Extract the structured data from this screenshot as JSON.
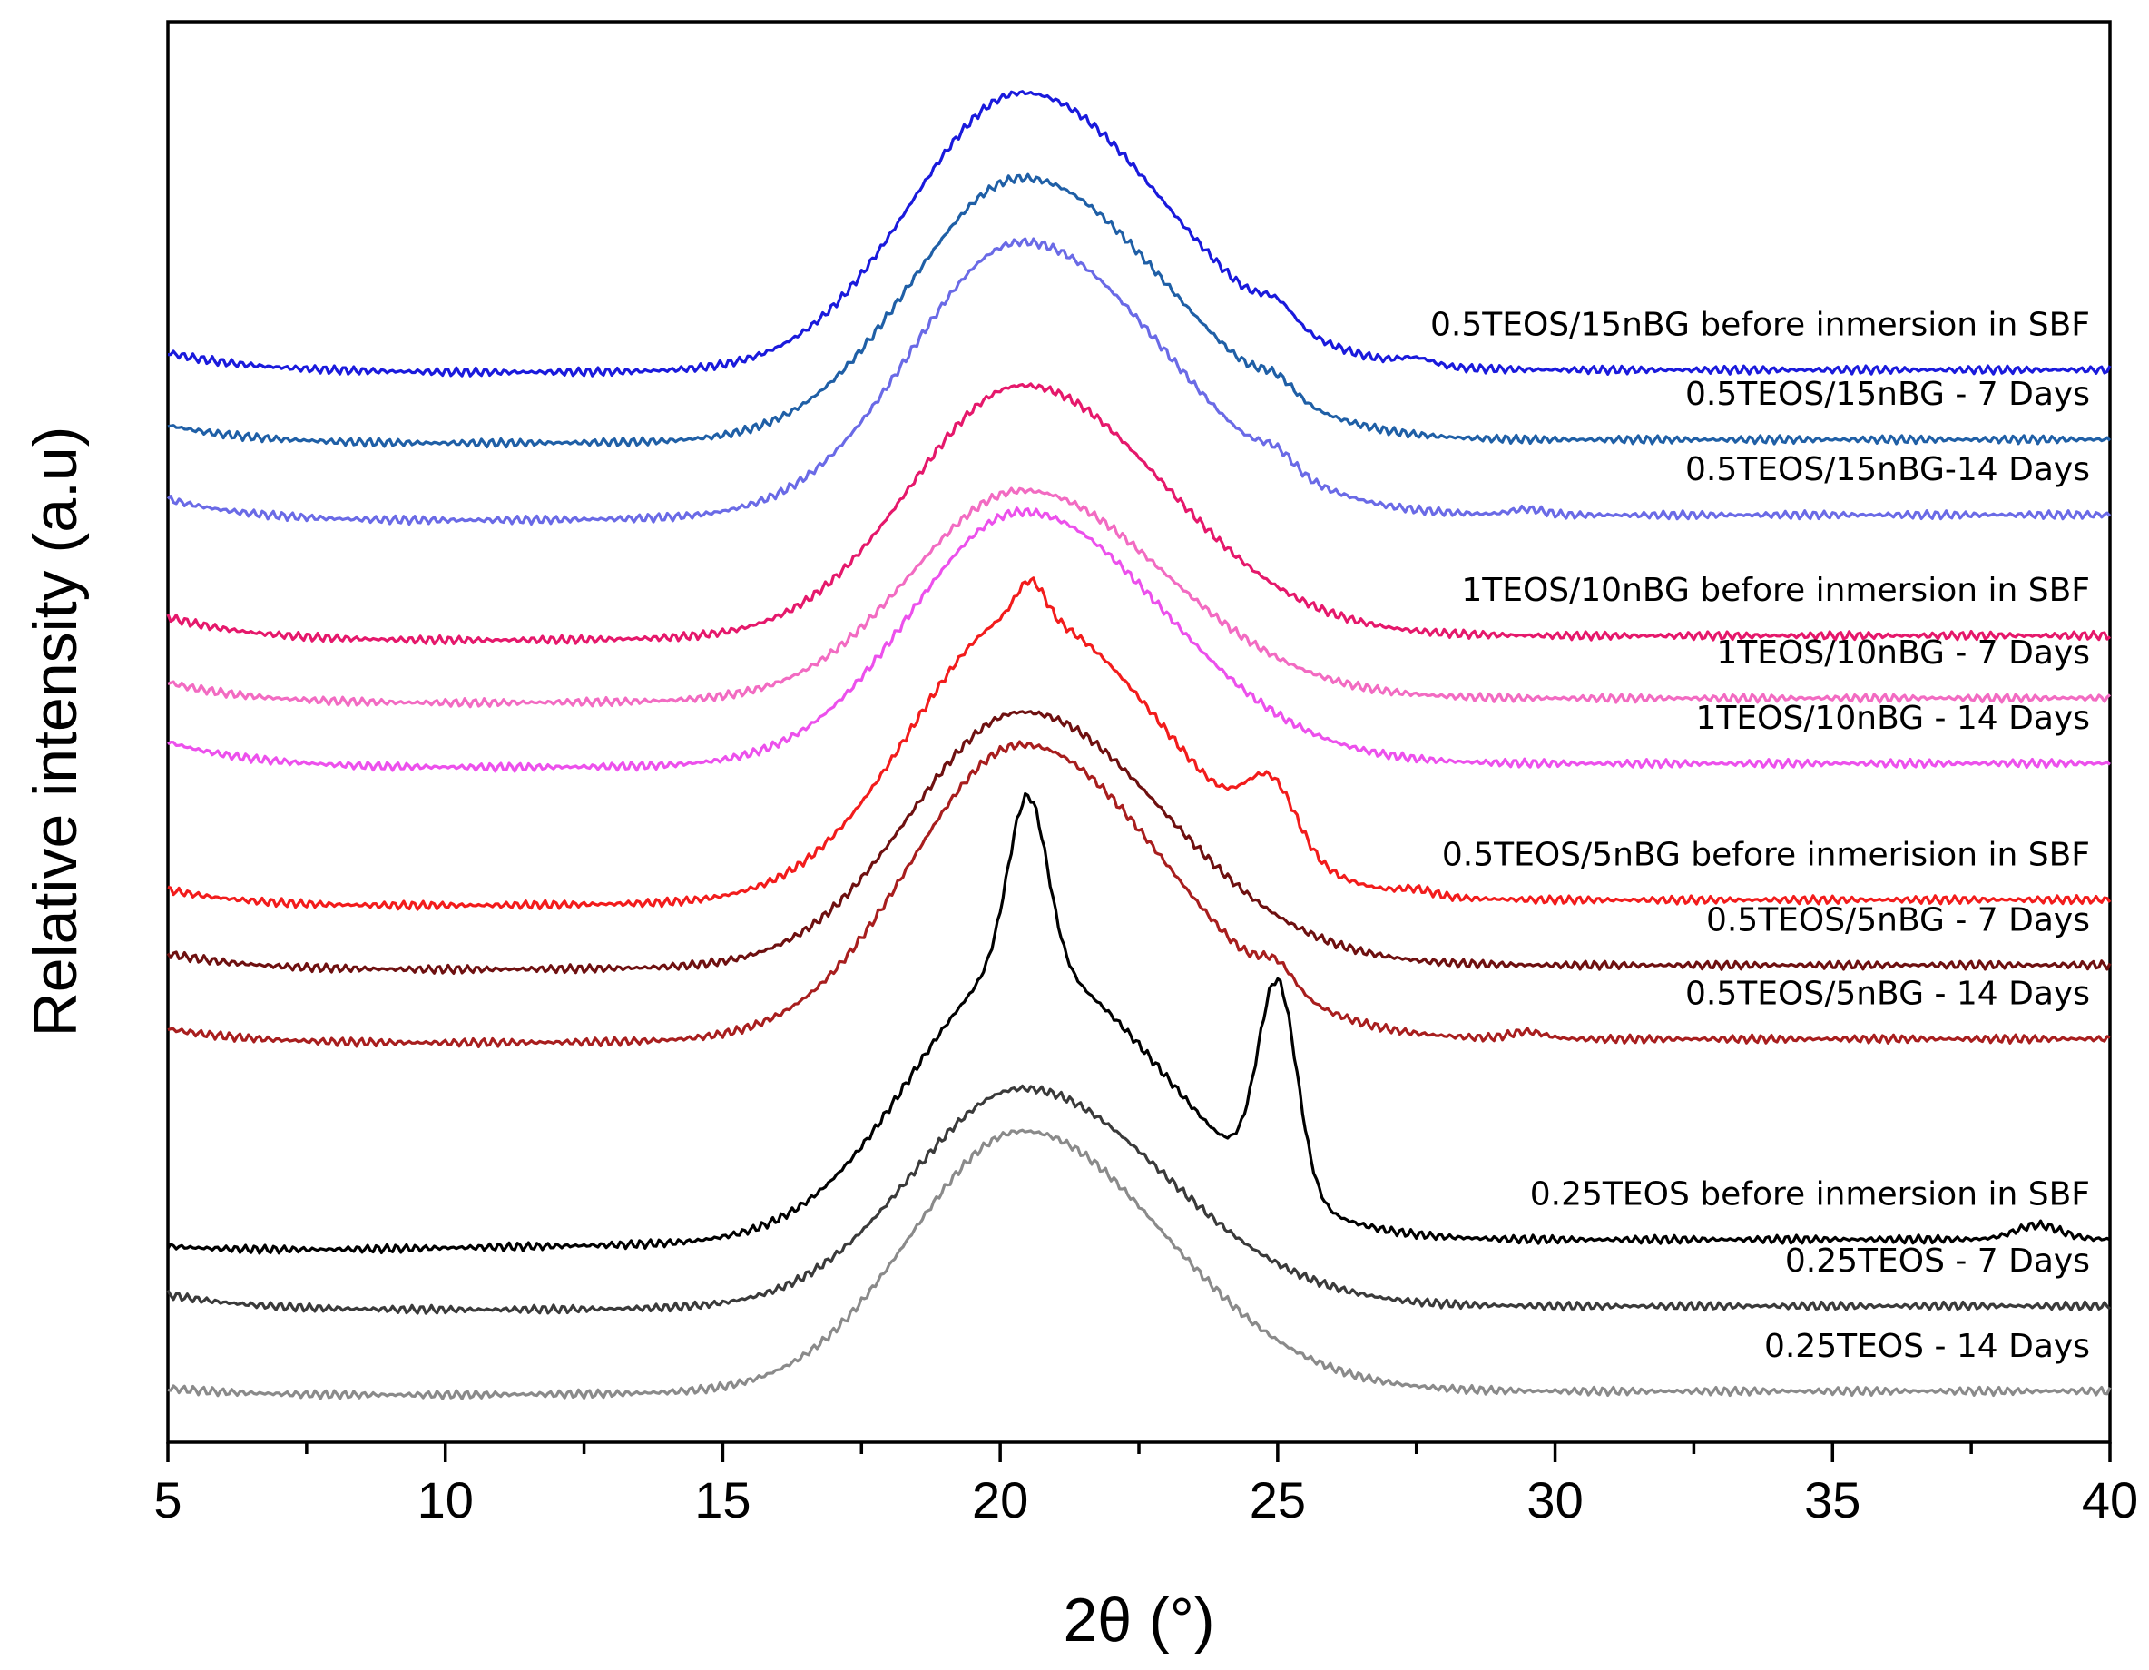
{
  "chart_data": {
    "type": "line",
    "title": "",
    "xlabel": "2θ (°)",
    "ylabel": "Relative intensity (a.u)",
    "xlim": [
      5,
      40
    ],
    "x_ticks": [
      "5",
      "10",
      "15",
      "20",
      "25",
      "30",
      "35",
      "40"
    ],
    "grid": false,
    "legend": "inline labels at right of each curve",
    "series": [
      {
        "name": "0.5TEOS/15nBG before inmersion in SBF",
        "color": "#1a1adc",
        "baseline": 0.755,
        "start": 0.767,
        "floor": 0.75,
        "peak": 0.95,
        "extra_peaks": [
          {
            "x": 25.0,
            "h": 0.012,
            "w": 0.3
          },
          {
            "x": 27.5,
            "h": 0.005,
            "w": 0.3
          }
        ]
      },
      {
        "name": "0.5TEOS/15nBG - 7 Days",
        "color": "#1f5fa6",
        "baseline": 0.706,
        "start": 0.716,
        "floor": 0.699,
        "peak": 0.89,
        "extra_peaks": [
          {
            "x": 25.0,
            "h": 0.01,
            "w": 0.3
          }
        ]
      },
      {
        "name": "0.5TEOS/15nBG-14 Days",
        "color": "#6a6ae6",
        "baseline": 0.653,
        "start": 0.664,
        "floor": 0.643,
        "peak": 0.845,
        "extra_peaks": [
          {
            "x": 25.0,
            "h": 0.01,
            "w": 0.3
          },
          {
            "x": 29.5,
            "h": 0.004,
            "w": 0.3
          }
        ]
      },
      {
        "name": "1TEOS/10nBG before inmersion in SBF",
        "color": "#e5186b",
        "baseline": 0.568,
        "start": 0.581,
        "floor": 0.559,
        "peak": 0.744,
        "extra_peaks": []
      },
      {
        "name": "1TEOS/10nBG - 7 Days",
        "color": "#f26bc2",
        "baseline": 0.524,
        "start": 0.535,
        "floor": 0.515,
        "peak": 0.67,
        "extra_peaks": []
      },
      {
        "name": "1TEOS/10nBG - 14 Days",
        "color": "#ec50ec",
        "baseline": 0.478,
        "start": 0.493,
        "floor": 0.47,
        "peak": 0.655,
        "extra_peaks": []
      },
      {
        "name": "0.5TEOS/5nBG before inmerision in SBF",
        "color": "#f21c1c",
        "baseline": 0.382,
        "start": 0.389,
        "floor": 0.372,
        "peak": 0.582,
        "extra_peaks": [
          {
            "x": 20.55,
            "h": 0.025,
            "w": 0.25
          },
          {
            "x": 24.9,
            "h": 0.045,
            "w": 0.45
          },
          {
            "x": 27.5,
            "h": 0.004,
            "w": 0.3
          }
        ]
      },
      {
        "name": "0.5TEOS/5nBG - 7 Days",
        "color": "#6e1010",
        "baseline": 0.336,
        "start": 0.344,
        "floor": 0.328,
        "peak": 0.514,
        "extra_peaks": []
      },
      {
        "name": "0.5TEOS/5nBG - 14 Days",
        "color": "#a81e1e",
        "baseline": 0.284,
        "start": 0.291,
        "floor": 0.277,
        "peak": 0.491,
        "extra_peaks": [
          {
            "x": 25.0,
            "h": 0.015,
            "w": 0.3
          },
          {
            "x": 29.5,
            "h": 0.005,
            "w": 0.3
          }
        ]
      },
      {
        "name": "0.25TEOS before inmersion in SBF",
        "color": "#000000",
        "baseline": 0.143,
        "start": 0.138,
        "floor": 0.13,
        "peak": 0.335,
        "extra_peaks": [
          {
            "x": 20.5,
            "h": 0.12,
            "w": 0.35
          },
          {
            "x": 25.0,
            "h": 0.145,
            "w": 0.35
          },
          {
            "x": 38.7,
            "h": 0.01,
            "w": 0.4
          }
        ]
      },
      {
        "name": "0.25TEOS - 7 Days",
        "color": "#3a3a3a",
        "baseline": 0.096,
        "start": 0.104,
        "floor": 0.089,
        "peak": 0.249,
        "extra_peaks": []
      },
      {
        "name": "0.25TEOS - 14 Days",
        "color": "#8a8a8a",
        "baseline": 0.036,
        "start": 0.038,
        "floor": 0.03,
        "peak": 0.219,
        "extra_peaks": []
      }
    ]
  }
}
